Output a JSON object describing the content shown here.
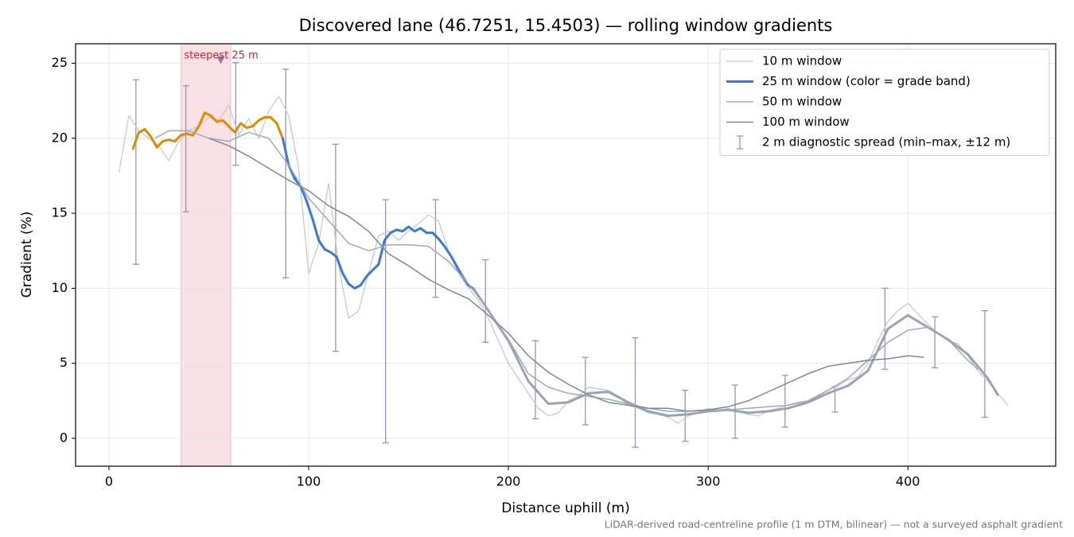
{
  "chart_data": {
    "type": "line",
    "title": "Discovered lane (46.7251, 15.4503) — rolling window gradients",
    "x_label": "Distance uphill (m)",
    "y_label": "Gradient (%)",
    "footnote": "LiDAR-derived road-centreline profile (1 m DTM, bilinear) — not a surveyed asphalt gradient",
    "xlim": [
      -16.7,
      474
    ],
    "ylim": [
      -1.86,
      26.3
    ],
    "xticks": [
      0,
      100,
      200,
      300,
      400
    ],
    "yticks": [
      0,
      5,
      10,
      15,
      20,
      25
    ],
    "grid": true,
    "legend": "upper right",
    "series": [
      {
        "name": "10 m window",
        "color": "#c4c9d2",
        "width": 1.3,
        "x": [
          5,
          10,
          15,
          20,
          25,
          30,
          35,
          40,
          45,
          50,
          55,
          60,
          65,
          70,
          75,
          80,
          85,
          90,
          95,
          100,
          105,
          110,
          115,
          120,
          125,
          130,
          135,
          140,
          145,
          150,
          155,
          160,
          165,
          170,
          175,
          180,
          185,
          190,
          195,
          200,
          205,
          210,
          215,
          220,
          225,
          230,
          235,
          240,
          245,
          250,
          255,
          260,
          265,
          270,
          275,
          280,
          285,
          290,
          295,
          300,
          305,
          310,
          315,
          320,
          325,
          330,
          335,
          340,
          345,
          350,
          355,
          360,
          365,
          370,
          375,
          380,
          385,
          390,
          395,
          400,
          405,
          410,
          415,
          420,
          425,
          430,
          435,
          440,
          445,
          450
        ],
        "values": [
          17.7,
          21.5,
          20.5,
          20.0,
          19.5,
          18.5,
          19.8,
          20.5,
          20.8,
          21.4,
          21.2,
          22.2,
          20.2,
          21.3,
          20.0,
          21.8,
          22.8,
          21.5,
          18,
          11,
          13,
          17,
          11.5,
          8,
          8.5,
          11,
          13.5,
          13.8,
          13.2,
          13.8,
          14.3,
          14.9,
          14.5,
          12.5,
          11,
          10,
          9.2,
          8,
          6.5,
          5,
          4,
          3,
          2,
          1.5,
          1.7,
          2.5,
          2.8,
          3.4,
          3.3,
          3.2,
          2.8,
          2.2,
          2,
          1.7,
          1.6,
          1.4,
          1.0,
          1.5,
          1.7,
          2.0,
          1.8,
          2.0,
          1.8,
          1.6,
          1.5,
          1.8,
          2.0,
          2.2,
          2.4,
          2.5,
          2.8,
          3.2,
          3.5,
          3.9,
          4.1,
          5.0,
          6.5,
          7.8,
          8.5,
          9.0,
          8.3,
          7.6,
          7.0,
          6.5,
          6.3,
          5.5,
          4.5,
          3.8,
          3.0,
          2.2
        ]
      },
      {
        "name": "25 m window (color = grade band)",
        "color": "#3a78d8",
        "width": 3,
        "segments": [
          {
            "color": "#e08a00",
            "x": [
              12,
              15,
              18,
              21,
              24,
              27,
              30,
              33,
              36,
              39,
              42,
              45,
              48,
              51,
              54,
              57,
              60,
              63,
              66,
              69,
              72,
              75,
              78,
              81,
              84,
              87
            ],
            "values": [
              19.3,
              20.4,
              20.6,
              20.1,
              19.4,
              19.8,
              19.9,
              19.8,
              20.2,
              20.3,
              20.2,
              20.8,
              21.7,
              21.5,
              21.1,
              21.2,
              20.8,
              20.4,
              21.0,
              20.7,
              20.8,
              21.2,
              21.4,
              21.4,
              21.0,
              20.0
            ]
          },
          {
            "color": "#3a78d8",
            "x": [
              87,
              90,
              93,
              96,
              99,
              102,
              105,
              108,
              111,
              114,
              117,
              120,
              123,
              126,
              129,
              132,
              135,
              138,
              141,
              144,
              147,
              150,
              153,
              156,
              159,
              162,
              165,
              168,
              171,
              174,
              177,
              180,
              183
            ],
            "values": [
              20.0,
              18.2,
              17.3,
              16.8,
              15.8,
              14.6,
              13.2,
              12.6,
              12.4,
              12.1,
              11.0,
              10.3,
              10.0,
              10.2,
              10.8,
              11.2,
              11.6,
              13.2,
              13.7,
              13.9,
              13.8,
              14.1,
              13.8,
              14.0,
              13.7,
              13.7,
              13.3,
              12.8,
              12.2,
              11.5,
              10.8,
              10.2,
              9.9
            ]
          },
          {
            "color": "#98a4b4",
            "x": [
              183,
              190,
              200,
              210,
              220,
              230,
              240,
              250,
              260,
              270,
              280,
              290,
              300,
              310,
              320,
              330,
              340,
              350,
              360,
              370,
              380,
              390,
              400,
              410,
              420,
              430,
              440,
              445
            ],
            "values": [
              9.9,
              8.5,
              6.5,
              3.8,
              2.3,
              2.4,
              3.0,
              3.1,
              2.4,
              1.8,
              1.5,
              1.6,
              1.8,
              1.9,
              1.7,
              1.8,
              2.0,
              2.4,
              3.0,
              3.5,
              4.5,
              7.3,
              8.2,
              7.4,
              6.6,
              5.6,
              4.0,
              2.9
            ]
          }
        ]
      },
      {
        "name": "50 m window",
        "color": "#a0a8b8",
        "width": 1.5,
        "x": [
          23,
          30,
          40,
          50,
          60,
          70,
          80,
          90,
          100,
          110,
          120,
          130,
          140,
          150,
          160,
          170,
          180,
          190,
          200,
          210,
          220,
          230,
          240,
          250,
          260,
          270,
          280,
          290,
          300,
          310,
          320,
          330,
          340,
          350,
          360,
          370,
          380,
          390,
          400,
          410,
          420,
          430,
          435
        ],
        "values": [
          20.0,
          20.5,
          20.5,
          20.0,
          19.8,
          20.4,
          20.0,
          18.2,
          16.0,
          14.5,
          13.0,
          12.5,
          12.9,
          12.9,
          12.8,
          11.8,
          10.3,
          8.5,
          6.6,
          4.3,
          3.4,
          3.0,
          2.8,
          2.6,
          2.3,
          2.0,
          1.8,
          1.8,
          1.9,
          1.9,
          2.0,
          2.1,
          2.2,
          2.5,
          3.2,
          4.0,
          5.2,
          6.4,
          7.2,
          7.4,
          6.6,
          5.2,
          4.6
        ]
      },
      {
        "name": "100 m window",
        "color": "#7f8898",
        "width": 1.5,
        "x": [
          50,
          60,
          70,
          80,
          90,
          100,
          110,
          120,
          130,
          140,
          150,
          160,
          170,
          180,
          190,
          200,
          210,
          220,
          230,
          240,
          250,
          260,
          270,
          280,
          290,
          300,
          310,
          320,
          330,
          340,
          350,
          360,
          370,
          380,
          390,
          400,
          408
        ],
        "values": [
          20.0,
          19.5,
          18.8,
          18.0,
          17.2,
          16.5,
          15.5,
          14.8,
          13.8,
          12.3,
          11.5,
          10.6,
          9.9,
          9.3,
          8.2,
          7.0,
          5.5,
          4.4,
          3.6,
          2.9,
          2.4,
          2.2,
          2.0,
          2.0,
          1.8,
          1.9,
          2.1,
          2.5,
          3.1,
          3.7,
          4.3,
          4.8,
          5.0,
          5.2,
          5.3,
          5.5,
          5.4
        ]
      }
    ],
    "error_bars": {
      "name": "2 m diagnostic spread (min–max, ±12 m)",
      "color": "#9a93b8",
      "x": [
        13.5,
        38.5,
        63.5,
        88.5,
        113.5,
        138.5,
        163.5,
        188.5,
        213.5,
        238.5,
        263.5,
        288.5,
        313.5,
        338.5,
        363.5,
        388.5,
        413.5,
        438.5
      ],
      "low": [
        11.6,
        15.1,
        18.2,
        10.7,
        5.8,
        -0.3,
        9.4,
        6.4,
        1.3,
        0.9,
        -0.6,
        -0.2,
        0,
        0.75,
        1.75,
        4.6,
        4.7,
        1.4
      ],
      "high": [
        23.9,
        23.5,
        25.05,
        24.6,
        19.6,
        15.9,
        15.9,
        11.9,
        6.5,
        5.4,
        6.7,
        3.2,
        3.55,
        4.2,
        3.45,
        10.0,
        8.1,
        8.5
      ]
    },
    "highlight": {
      "label": "steepest 25 m",
      "x0": 36,
      "x1": 61,
      "marker_x": 56,
      "marker_y": 25.2,
      "color": "#d9546a",
      "text_color": "#c0283a",
      "marker_color": "#8c7ea0"
    }
  }
}
